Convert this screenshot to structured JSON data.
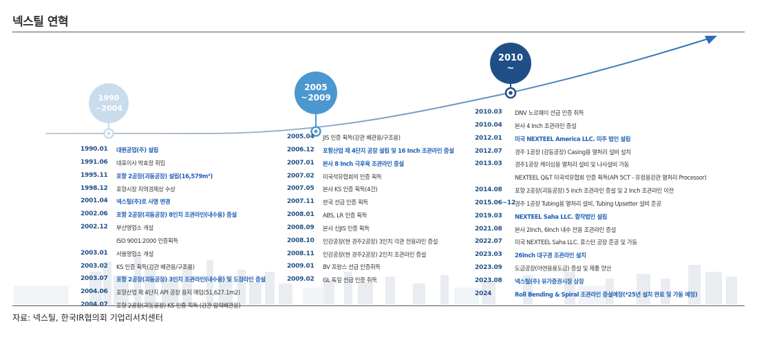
{
  "title": "넥스틸 연혁",
  "source": "자료: 넥스틸, 한국IR협의회 기업리서치센터",
  "colors": {
    "accent": "#1f4f86",
    "highlight": "#1f5fb4",
    "period1": "#c9dcec",
    "period2": "#4c97d0",
    "period3": "#1f4f86",
    "curve": "#2c6db6"
  },
  "periods": [
    {
      "line1": "1990",
      "line2": "~2004"
    },
    {
      "line1": "2005",
      "line2": "~2009"
    },
    {
      "line1": "2010",
      "line2": "~"
    }
  ],
  "col1": [
    {
      "date": "1990.01",
      "text": "대원공업(주) 설립",
      "highlight": true
    },
    {
      "date": "1991.06",
      "text": "대표이사 박효정 취임",
      "highlight": false
    },
    {
      "date": "1995.11",
      "text": "포항 2공장(괴동공장) 설립(16,579m²)",
      "highlight": true
    },
    {
      "date": "1998.12",
      "text": "포항시장 지역경제상 수상",
      "highlight": false
    },
    {
      "date": "2001.04",
      "text": "넥스틸(주)로 사명 변경",
      "highlight": true
    },
    {
      "date": "2002.06",
      "text": "포항 2공장(괴동공장) 8인치 조관라인(내수용) 증설",
      "highlight": true
    },
    {
      "date": "2002.12",
      "text": "부산영업소 개설",
      "highlight": false
    },
    {
      "date": "",
      "text": "ISO 9001:2000 인증획득",
      "highlight": false
    },
    {
      "date": "2003.01",
      "text": "서울영업소 개설",
      "highlight": false
    },
    {
      "date": "2003.02",
      "text": "KS 인증 획득(강관 배관용/구조용)",
      "highlight": false
    },
    {
      "date": "2003.07",
      "text": "포항 2공장(괴동공장) 3인치 조관라인(내수용) 및 도장라인 증설",
      "highlight": true
    },
    {
      "date": "2004.06",
      "text": "포항산업 제 4단지 API 공장 용지 매입(51,627.1m2)",
      "highlight": false
    },
    {
      "date": "2004.07",
      "text": "포항 2공장(괴동공장) KS 인증 획득 (강관 압력배관용)",
      "highlight": false
    }
  ],
  "col2": [
    {
      "date": "2005.04",
      "text": "JIS 인증 획득(강관 배관용/구조용)",
      "highlight": false
    },
    {
      "date": "2006.12",
      "text": "포항산업 제 4단지 공장 설립 및 16 Inch 조관라인 증설",
      "highlight": true
    },
    {
      "date": "2007.01",
      "text": "본사 8 Inch 극후육 조관라인 증설",
      "highlight": true
    },
    {
      "date": "2007.02",
      "text": "미국석유협회의 인증 획득",
      "highlight": false
    },
    {
      "date": "2007.05",
      "text": "본사 KS 인증 획득(4건)",
      "highlight": false
    },
    {
      "date": "2007.11",
      "text": "한국 선급 인증 획득",
      "highlight": false
    },
    {
      "date": "2008.01",
      "text": "ABS, LR 인증 획득",
      "highlight": false
    },
    {
      "date": "2008.09",
      "text": "본사 신JIS 인증 획득",
      "highlight": false
    },
    {
      "date": "2008.10",
      "text": "인강공장(현 경주2공장) 3인치 각관 전용라인 증설",
      "highlight": false
    },
    {
      "date": "2008.11",
      "text": "인강공장(현 경주2공장) 2인치 조관라인 증설",
      "highlight": false
    },
    {
      "date": "2009.01",
      "text": "BV 프랑스 선급 인증취득",
      "highlight": false
    },
    {
      "date": "2009.02",
      "text": "GL 독일 선급 인증 취득",
      "highlight": false
    }
  ],
  "col3": [
    {
      "date": "2010.03",
      "text": "DNV 노르웨이 선급 인증 취득",
      "highlight": false
    },
    {
      "date": "2010.04",
      "text": "본사 4 Inch 조관라인 증설",
      "highlight": false
    },
    {
      "date": "2012.01",
      "text": "미국 NEXTEEL America LLC. 미주 법인 설립",
      "highlight": true
    },
    {
      "date": "2012.07",
      "text": "경주 1공장 (강동공장) Casing용 열처리 설비 설치",
      "highlight": false
    },
    {
      "date": "2013.03",
      "text": "경주1공장 케이싱용 열처리 설비 및 나사설비 가동",
      "highlight": false
    },
    {
      "date": "",
      "text": "NEXTEEL Q&T 미국석유협회 인증 획득(API 5CT - 유정용강관 열처리 Processor)",
      "highlight": false
    },
    {
      "date": "2014.08",
      "text": "포항 2공장(괴동공장) 5 Inch 조관라인 증설 및 2 Inch 조관라인 이전",
      "highlight": false
    },
    {
      "date": "2015.06~12",
      "text": "경주 1공장 Tubing용 열처리 설비, Tubing Upsetter 설비 준공",
      "highlight": false
    },
    {
      "date": "2019.03",
      "text": "NEXTEEL Saha LLC. 합작법인 설립",
      "highlight": true
    },
    {
      "date": "2021.08",
      "text": "본사 2Inch, 6Inch 내수 전용 조관라인 증설",
      "highlight": false
    },
    {
      "date": "2022.07",
      "text": "미국 NEXTEEL Saha LLC. 휴스턴 공장 준공 및 가동",
      "highlight": false
    },
    {
      "date": "2023.03",
      "text": "26Inch 대구경 조관라인 설치",
      "highlight": true
    },
    {
      "date": "2023.09",
      "text": "도금공장(아연용융도금) 증설 및 제품 양산",
      "highlight": false
    },
    {
      "date": "2023.08",
      "text": "넥스틸(주) 유가증권시장 상장",
      "highlight": true
    },
    {
      "date": "2024",
      "text": "Roll Bending & Spiral 조관라인 증설예정(*25년 설치 완료 및 가동 예정)",
      "highlight": true
    }
  ]
}
